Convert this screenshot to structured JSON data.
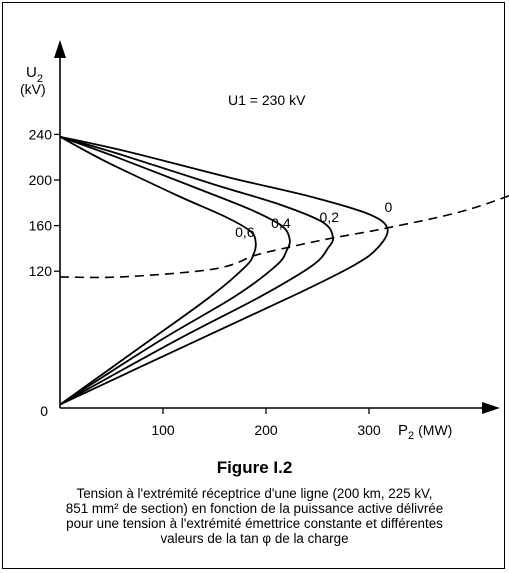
{
  "chart_data": {
    "type": "line",
    "y_axis": {
      "label_main": "U",
      "label_sub": "2",
      "unit": "(kV)",
      "ticks": [
        0,
        120,
        160,
        200,
        240
      ],
      "range": [
        0,
        240
      ]
    },
    "x_axis": {
      "label_main": "P",
      "label_sub": "2",
      "unit": "(MW)",
      "ticks": [
        100,
        200,
        300
      ],
      "range": [
        0,
        300
      ]
    },
    "origin_label": "0",
    "annotation": "U1 = 230 kV",
    "series": [
      {
        "name": "0",
        "points": [
          [
            0,
            238
          ],
          [
            65,
            225
          ],
          [
            165,
            202
          ],
          [
            245,
            185
          ],
          [
            300,
            170
          ],
          [
            318,
            157
          ],
          [
            308,
            140
          ],
          [
            285,
            125
          ],
          [
            230,
            100
          ],
          [
            130,
            58
          ],
          [
            0,
            3
          ]
        ]
      },
      {
        "name": "0,2",
        "points": [
          [
            0,
            238
          ],
          [
            60,
            222
          ],
          [
            150,
            196
          ],
          [
            215,
            178
          ],
          [
            255,
            163
          ],
          [
            265,
            150
          ],
          [
            260,
            140
          ],
          [
            245,
            125
          ],
          [
            195,
            98
          ],
          [
            110,
            58
          ],
          [
            0,
            3
          ]
        ]
      },
      {
        "name": "0,4",
        "points": [
          [
            0,
            238
          ],
          [
            55,
            220
          ],
          [
            135,
            192
          ],
          [
            185,
            174
          ],
          [
            215,
            160
          ],
          [
            223,
            148
          ],
          [
            220,
            138
          ],
          [
            210,
            125
          ],
          [
            170,
            98
          ],
          [
            95,
            58
          ],
          [
            0,
            3
          ]
        ]
      },
      {
        "name": "0,6",
        "points": [
          [
            0,
            238
          ],
          [
            45,
            216
          ],
          [
            115,
            186
          ],
          [
            160,
            168
          ],
          [
            185,
            155
          ],
          [
            190,
            145
          ],
          [
            188,
            135
          ],
          [
            180,
            124
          ],
          [
            145,
            97
          ],
          [
            85,
            58
          ],
          [
            0,
            3
          ]
        ]
      }
    ],
    "locus": {
      "style": "dashed",
      "points": [
        [
          0,
          115
        ],
        [
          60,
          115
        ],
        [
          150,
          122
        ],
        [
          190,
          134
        ],
        [
          222,
          141
        ],
        [
          264,
          149
        ],
        [
          318,
          158
        ],
        [
          400,
          175
        ],
        [
          490,
          205
        ]
      ]
    }
  },
  "caption": {
    "title": "Figure I.2",
    "lines": [
      "Tension à l'extrémité réceptrice d'une ligne (200 km, 225 kV,",
      "851 mm² de section) en fonction de la puissance active délivrée",
      "pour une tension à l'extrémité émettrice constante et différentes",
      "valeurs de la tan φ de la charge"
    ]
  }
}
